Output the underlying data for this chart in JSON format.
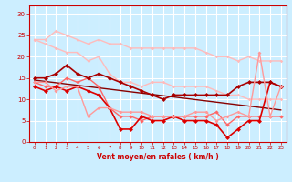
{
  "xlabel": "Vent moyen/en rafales ( km/h )",
  "ylabel": "",
  "xlim": [
    -0.5,
    23.5
  ],
  "ylim": [
    0,
    32
  ],
  "xticks": [
    0,
    1,
    2,
    3,
    4,
    5,
    6,
    7,
    8,
    9,
    10,
    11,
    12,
    13,
    14,
    15,
    16,
    17,
    18,
    19,
    20,
    21,
    22,
    23
  ],
  "yticks": [
    0,
    5,
    10,
    15,
    20,
    25,
    30
  ],
  "bg_color": "#cceeff",
  "grid_color": "#ffffff",
  "lines": [
    {
      "x": [
        0,
        1,
        2,
        3,
        4,
        5,
        6,
        7,
        8,
        9,
        10,
        11,
        12,
        13,
        14,
        15,
        16,
        17,
        18,
        19,
        20,
        21,
        22,
        23
      ],
      "y": [
        24,
        24,
        26,
        25,
        24,
        23,
        24,
        23,
        23,
        22,
        22,
        22,
        22,
        22,
        22,
        22,
        21,
        20,
        20,
        19,
        20,
        19,
        19,
        19
      ],
      "color": "#ffbbbb",
      "lw": 1.0,
      "marker": "D",
      "ms": 1.8
    },
    {
      "x": [
        0,
        1,
        2,
        3,
        4,
        5,
        6,
        7,
        8,
        9,
        10,
        11,
        12,
        13,
        14,
        15,
        16,
        17,
        18,
        19,
        20,
        21,
        22,
        23
      ],
      "y": [
        24,
        23,
        22,
        21,
        21,
        19,
        20,
        16,
        14,
        14,
        13,
        14,
        14,
        13,
        13,
        13,
        13,
        12,
        11,
        11,
        10,
        10,
        10,
        10
      ],
      "color": "#ffbbbb",
      "lw": 1.0,
      "marker": "D",
      "ms": 1.8
    },
    {
      "x": [
        0,
        1,
        2,
        3,
        4,
        5,
        6,
        7,
        8,
        9,
        10,
        11,
        12,
        13,
        14,
        15,
        16,
        17,
        18,
        19,
        20,
        21,
        22,
        23
      ],
      "y": [
        14,
        13,
        13,
        15,
        14,
        15,
        13,
        8,
        6,
        6,
        5,
        6,
        6,
        6,
        6,
        6,
        6,
        7,
        4,
        6,
        6,
        6,
        6,
        6
      ],
      "color": "#ff6666",
      "lw": 1.0,
      "marker": "D",
      "ms": 2.2
    },
    {
      "x": [
        0,
        1,
        2,
        3,
        4,
        5,
        6,
        7,
        8,
        9,
        10,
        11,
        12,
        13,
        14,
        15,
        16,
        17,
        18,
        19,
        20,
        21,
        22,
        23
      ],
      "y": [
        13,
        12,
        13,
        12,
        13,
        12,
        11,
        8,
        3,
        3,
        6,
        5,
        5,
        6,
        5,
        5,
        5,
        4,
        1,
        3,
        5,
        5,
        14,
        13
      ],
      "color": "#dd0000",
      "lw": 1.2,
      "marker": "D",
      "ms": 2.5
    },
    {
      "x": [
        0,
        1,
        2,
        3,
        4,
        5,
        6,
        7,
        8,
        9,
        10,
        11,
        12,
        13,
        14,
        15,
        16,
        17,
        18,
        19,
        20,
        21,
        22,
        23
      ],
      "y": [
        15,
        15,
        16,
        18,
        16,
        15,
        16,
        15,
        14,
        13,
        12,
        11,
        10,
        11,
        11,
        11,
        11,
        11,
        11,
        13,
        14,
        14,
        14,
        13
      ],
      "color": "#aa0000",
      "lw": 1.2,
      "marker": "D",
      "ms": 2.5
    },
    {
      "x": [
        0,
        1,
        2,
        3,
        4,
        5,
        6,
        7,
        8,
        9,
        10,
        11,
        12,
        13,
        14,
        15,
        16,
        17,
        18,
        19,
        20,
        21,
        22,
        23
      ],
      "y": [
        14,
        14,
        12,
        13,
        13,
        6,
        8,
        8,
        7,
        7,
        7,
        6,
        6,
        6,
        6,
        7,
        7,
        5,
        6,
        7,
        6,
        21,
        6,
        13
      ],
      "color": "#ff9999",
      "lw": 1.0,
      "marker": "D",
      "ms": 2.0
    },
    {
      "x": [
        0,
        23
      ],
      "y": [
        14.5,
        7.5
      ],
      "color": "#880000",
      "lw": 1.0,
      "marker": null,
      "ms": 0
    }
  ]
}
